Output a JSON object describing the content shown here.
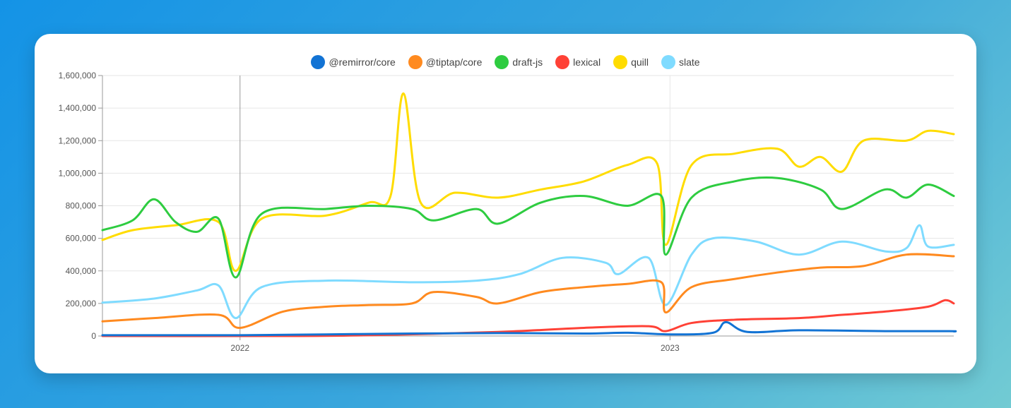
{
  "chart_data": {
    "type": "line",
    "title": "",
    "xlabel": "",
    "ylabel": "",
    "x_start": "2021-06",
    "x_end": "2023-07",
    "x_ticks": [
      {
        "value": 2022,
        "label": "2022"
      },
      {
        "value": 2023,
        "label": "2023"
      }
    ],
    "ylim": [
      0,
      1600000
    ],
    "y_ticks": [
      {
        "value": 0,
        "label": "0"
      },
      {
        "value": 200000,
        "label": "200,000"
      },
      {
        "value": 400000,
        "label": "400,000"
      },
      {
        "value": 600000,
        "label": "600,000"
      },
      {
        "value": 800000,
        "label": "800,000"
      },
      {
        "value": 1000000,
        "label": "1,000,000"
      },
      {
        "value": 1200000,
        "label": "1,200,000"
      },
      {
        "value": 1400000,
        "label": "1,400,000"
      },
      {
        "value": 1600000,
        "label": "1,600,000"
      }
    ],
    "grid": true,
    "legend_position": "top-center",
    "series": [
      {
        "name": "@remirror/core",
        "color": "#1273d4",
        "points": [
          [
            2021.68,
            5000
          ],
          [
            2021.85,
            5000
          ],
          [
            2022.0,
            5000
          ],
          [
            2022.2,
            10000
          ],
          [
            2022.4,
            15000
          ],
          [
            2022.6,
            18000
          ],
          [
            2022.8,
            15000
          ],
          [
            2022.9,
            20000
          ],
          [
            2023.0,
            10000
          ],
          [
            2023.1,
            20000
          ],
          [
            2023.13,
            85000
          ],
          [
            2023.18,
            25000
          ],
          [
            2023.3,
            35000
          ],
          [
            2023.5,
            30000
          ],
          [
            2023.65,
            30000
          ],
          [
            2023.66,
            28000
          ]
        ]
      },
      {
        "name": "@tiptap/core",
        "color": "#ff8a1f",
        "points": [
          [
            2021.68,
            90000
          ],
          [
            2021.8,
            110000
          ],
          [
            2021.95,
            130000
          ],
          [
            2022.0,
            50000
          ],
          [
            2022.1,
            150000
          ],
          [
            2022.2,
            180000
          ],
          [
            2022.3,
            190000
          ],
          [
            2022.4,
            200000
          ],
          [
            2022.45,
            270000
          ],
          [
            2022.55,
            240000
          ],
          [
            2022.6,
            200000
          ],
          [
            2022.7,
            270000
          ],
          [
            2022.8,
            300000
          ],
          [
            2022.9,
            320000
          ],
          [
            2022.98,
            330000
          ],
          [
            2022.99,
            145000
          ],
          [
            2023.05,
            300000
          ],
          [
            2023.15,
            350000
          ],
          [
            2023.25,
            390000
          ],
          [
            2023.35,
            420000
          ],
          [
            2023.45,
            430000
          ],
          [
            2023.55,
            500000
          ],
          [
            2023.66,
            490000
          ]
        ]
      },
      {
        "name": "draft-js",
        "color": "#2ecc40",
        "points": [
          [
            2021.68,
            650000
          ],
          [
            2021.75,
            710000
          ],
          [
            2021.8,
            840000
          ],
          [
            2021.85,
            700000
          ],
          [
            2021.9,
            640000
          ],
          [
            2021.95,
            720000
          ],
          [
            2021.99,
            360000
          ],
          [
            2022.05,
            750000
          ],
          [
            2022.2,
            780000
          ],
          [
            2022.3,
            800000
          ],
          [
            2022.4,
            780000
          ],
          [
            2022.45,
            710000
          ],
          [
            2022.55,
            780000
          ],
          [
            2022.6,
            690000
          ],
          [
            2022.7,
            820000
          ],
          [
            2022.8,
            860000
          ],
          [
            2022.9,
            800000
          ],
          [
            2022.98,
            860000
          ],
          [
            2022.99,
            500000
          ],
          [
            2023.05,
            850000
          ],
          [
            2023.15,
            950000
          ],
          [
            2023.25,
            970000
          ],
          [
            2023.35,
            900000
          ],
          [
            2023.4,
            780000
          ],
          [
            2023.5,
            900000
          ],
          [
            2023.55,
            850000
          ],
          [
            2023.6,
            930000
          ],
          [
            2023.66,
            860000
          ]
        ]
      },
      {
        "name": "lexical",
        "color": "#ff4136",
        "points": [
          [
            2021.68,
            0
          ],
          [
            2022.1,
            0
          ],
          [
            2022.3,
            5000
          ],
          [
            2022.6,
            25000
          ],
          [
            2022.8,
            50000
          ],
          [
            2022.95,
            60000
          ],
          [
            2022.99,
            30000
          ],
          [
            2023.05,
            80000
          ],
          [
            2023.15,
            100000
          ],
          [
            2023.3,
            110000
          ],
          [
            2023.4,
            130000
          ],
          [
            2023.5,
            150000
          ],
          [
            2023.6,
            180000
          ],
          [
            2023.64,
            220000
          ],
          [
            2023.66,
            200000
          ]
        ]
      },
      {
        "name": "quill",
        "color": "#ffdc00",
        "points": [
          [
            2021.68,
            590000
          ],
          [
            2021.75,
            650000
          ],
          [
            2021.85,
            680000
          ],
          [
            2021.95,
            700000
          ],
          [
            2021.99,
            400000
          ],
          [
            2022.05,
            720000
          ],
          [
            2022.2,
            740000
          ],
          [
            2022.3,
            820000
          ],
          [
            2022.35,
            860000
          ],
          [
            2022.38,
            1490000
          ],
          [
            2022.42,
            820000
          ],
          [
            2022.5,
            880000
          ],
          [
            2022.6,
            850000
          ],
          [
            2022.7,
            900000
          ],
          [
            2022.8,
            950000
          ],
          [
            2022.9,
            1050000
          ],
          [
            2022.97,
            1060000
          ],
          [
            2022.99,
            560000
          ],
          [
            2023.05,
            1050000
          ],
          [
            2023.15,
            1120000
          ],
          [
            2023.25,
            1150000
          ],
          [
            2023.3,
            1040000
          ],
          [
            2023.35,
            1100000
          ],
          [
            2023.4,
            1010000
          ],
          [
            2023.45,
            1200000
          ],
          [
            2023.55,
            1200000
          ],
          [
            2023.6,
            1260000
          ],
          [
            2023.66,
            1240000
          ]
        ]
      },
      {
        "name": "slate",
        "color": "#7fdbff",
        "points": [
          [
            2021.68,
            205000
          ],
          [
            2021.8,
            230000
          ],
          [
            2021.9,
            280000
          ],
          [
            2021.95,
            310000
          ],
          [
            2021.99,
            110000
          ],
          [
            2022.05,
            300000
          ],
          [
            2022.2,
            340000
          ],
          [
            2022.4,
            330000
          ],
          [
            2022.55,
            340000
          ],
          [
            2022.65,
            380000
          ],
          [
            2022.75,
            480000
          ],
          [
            2022.85,
            450000
          ],
          [
            2022.88,
            380000
          ],
          [
            2022.95,
            480000
          ],
          [
            2022.99,
            190000
          ],
          [
            2023.05,
            500000
          ],
          [
            2023.1,
            600000
          ],
          [
            2023.2,
            580000
          ],
          [
            2023.3,
            500000
          ],
          [
            2023.4,
            580000
          ],
          [
            2023.5,
            520000
          ],
          [
            2023.55,
            540000
          ],
          [
            2023.58,
            680000
          ],
          [
            2023.6,
            550000
          ],
          [
            2023.66,
            560000
          ]
        ]
      }
    ]
  }
}
